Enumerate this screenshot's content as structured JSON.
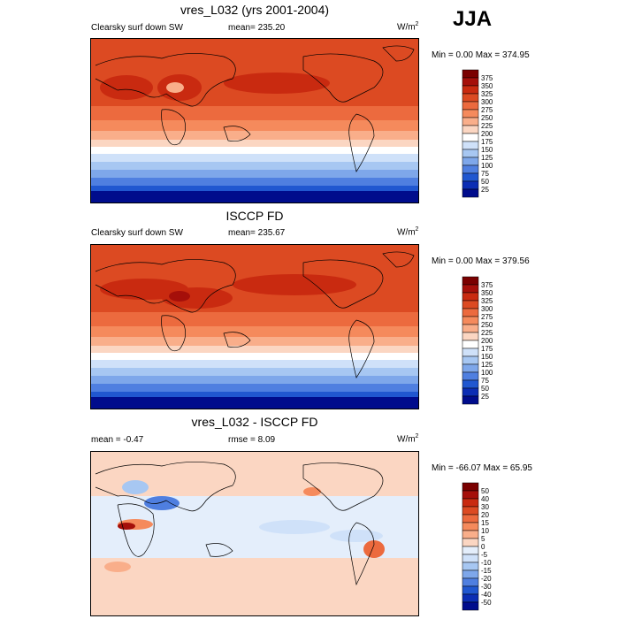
{
  "season": "JJA",
  "panels": [
    {
      "title": "vres_L032 (yrs 2001-2004)",
      "left_label": "Clearsky surf down SW",
      "center_label": "mean= 235.20",
      "units_base": "W/m",
      "units_exp": "2",
      "minmax": "Min =   0.00 Max = 374.95",
      "colorbar": {
        "labels": [
          "375",
          "350",
          "325",
          "300",
          "275",
          "250",
          "225",
          "200",
          "175",
          "150",
          "125",
          "100",
          "75",
          "50",
          "25"
        ],
        "colors": [
          "#7a0000",
          "#a50f0a",
          "#c92a10",
          "#dc4a22",
          "#ec6a3e",
          "#f58a5c",
          "#f9ae8a",
          "#fbd6c2",
          "#ffffff",
          "#cfe1f9",
          "#a7c7f2",
          "#7ea7ea",
          "#4f7fe0",
          "#2057d0",
          "#0b2db4",
          "#000c8c"
        ]
      }
    },
    {
      "title": "ISCCP FD",
      "left_label": "Clearsky surf down SW",
      "center_label": "mean= 235.67",
      "units_base": "W/m",
      "units_exp": "2",
      "minmax": "Min =   0.00 Max = 379.56",
      "colorbar": {
        "labels": [
          "375",
          "350",
          "325",
          "300",
          "275",
          "250",
          "225",
          "200",
          "175",
          "150",
          "125",
          "100",
          "75",
          "50",
          "25"
        ],
        "colors": [
          "#7a0000",
          "#a50f0a",
          "#c92a10",
          "#dc4a22",
          "#ec6a3e",
          "#f58a5c",
          "#f9ae8a",
          "#fbd6c2",
          "#ffffff",
          "#cfe1f9",
          "#a7c7f2",
          "#7ea7ea",
          "#4f7fe0",
          "#2057d0",
          "#0b2db4",
          "#000c8c"
        ]
      }
    },
    {
      "title": "vres_L032 - ISCCP FD",
      "left_label": "mean =  -0.47",
      "center_label": "rmse =    8.09",
      "units_base": "W/m",
      "units_exp": "2",
      "minmax": "Min = -66.07 Max =  65.95",
      "colorbar": {
        "labels": [
          "50",
          "40",
          "30",
          "20",
          "15",
          "10",
          "5",
          "0",
          "-5",
          "-10",
          "-15",
          "-20",
          "-30",
          "-40",
          "-50"
        ],
        "colors": [
          "#7a0000",
          "#a50f0a",
          "#c92a10",
          "#dc4a22",
          "#ec6a3e",
          "#f58a5c",
          "#f9ae8a",
          "#fbd6c2",
          "#e4eefb",
          "#cfe1f9",
          "#a7c7f2",
          "#7ea7ea",
          "#4f7fe0",
          "#2057d0",
          "#0b2db4",
          "#000c8c"
        ]
      }
    }
  ]
}
